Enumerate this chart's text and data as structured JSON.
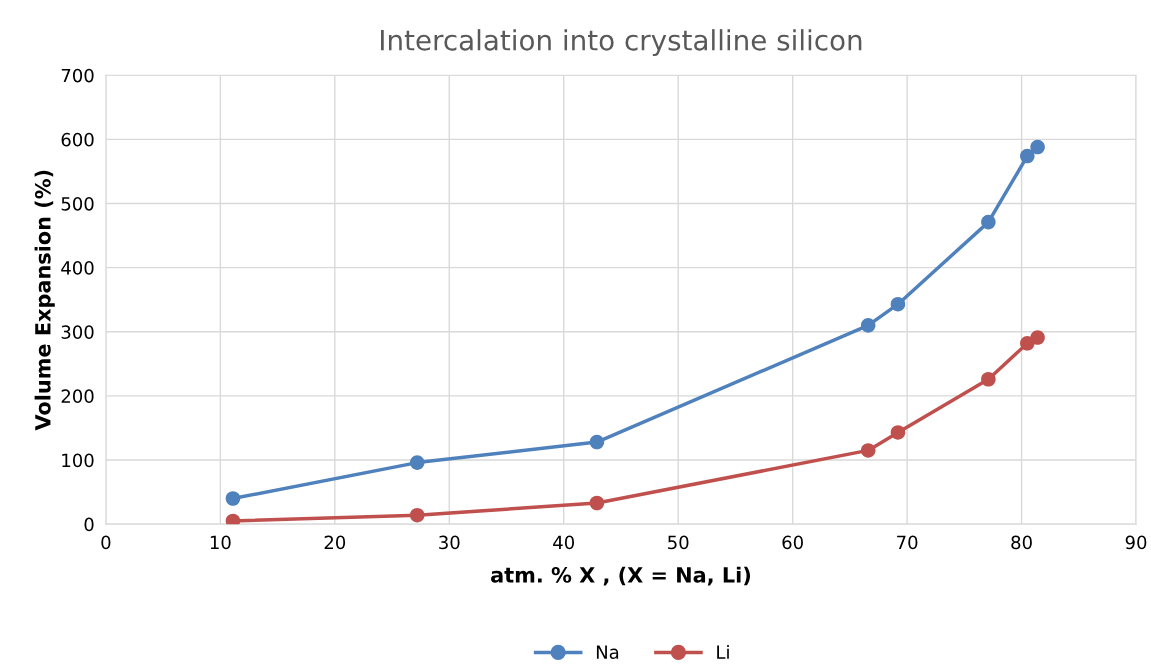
{
  "chart_data": {
    "type": "line",
    "title": "Intercalation into crystalline silicon",
    "xlabel": "atm. % X , (X = Na, Li)",
    "ylabel": "Volume Expansion (%)",
    "xlim": [
      0,
      90
    ],
    "xticks": [
      0,
      10,
      20,
      30,
      40,
      50,
      60,
      70,
      80,
      90
    ],
    "ylim": [
      0,
      700
    ],
    "yticks": [
      0,
      100,
      200,
      300,
      400,
      500,
      600,
      700
    ],
    "grid": true,
    "legend": "bottom",
    "marker": "circle",
    "line_style": "solid",
    "x": [
      11.1,
      27.2,
      42.9,
      66.6,
      69.2,
      77.1,
      80.5,
      81.4
    ],
    "series": [
      {
        "name": "Na",
        "color": "#4f81bd",
        "values": [
          40,
          96,
          128,
          310,
          343,
          471,
          574,
          588
        ]
      },
      {
        "name": "Li",
        "color": "#c0504d",
        "values": [
          5,
          14,
          33,
          115,
          143,
          226,
          282,
          291
        ]
      }
    ]
  }
}
